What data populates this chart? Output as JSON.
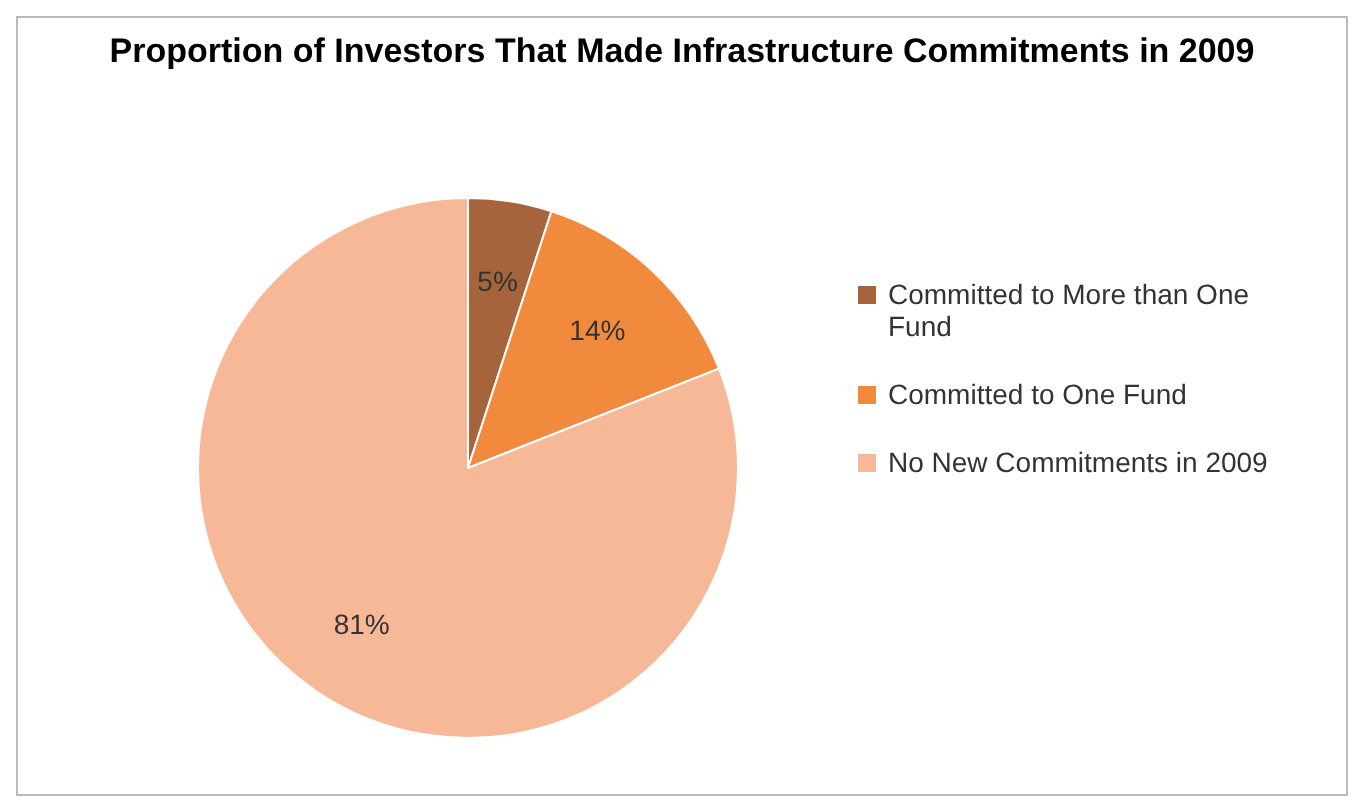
{
  "chart_data": {
    "type": "pie",
    "title": "Proportion of Investors That Made Infrastructure Commitments in 2009",
    "categories": [
      "Committed to More than One Fund",
      "Committed to One Fund",
      "No New Commitments in 2009"
    ],
    "values": [
      5,
      14,
      81
    ],
    "colors": [
      "#a5643c",
      "#f28a3e",
      "#f7b898"
    ],
    "value_labels": [
      "5%",
      "14%",
      "81%"
    ],
    "legend": "right"
  }
}
